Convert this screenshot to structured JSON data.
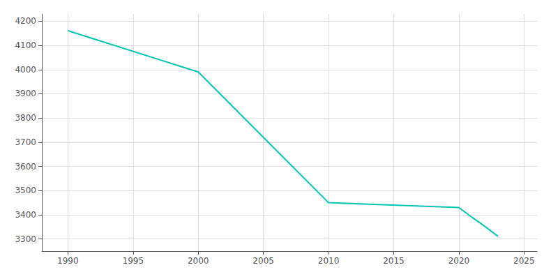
{
  "chart_data": {
    "type": "line",
    "x": [
      1990,
      2000,
      2010,
      2020,
      2021,
      2022,
      2023
    ],
    "values": [
      4161,
      3990,
      3450,
      3430,
      3390,
      3352,
      3311
    ],
    "color": "#00C5B0",
    "xlim": [
      1988,
      2026
    ],
    "ylim": [
      3250,
      4230
    ],
    "xticks": [
      1990,
      1995,
      2000,
      2005,
      2010,
      2015,
      2020,
      2025
    ],
    "yticks": [
      3300,
      3400,
      3500,
      3600,
      3700,
      3800,
      3900,
      4000,
      4100,
      4200
    ],
    "grid": true
  }
}
